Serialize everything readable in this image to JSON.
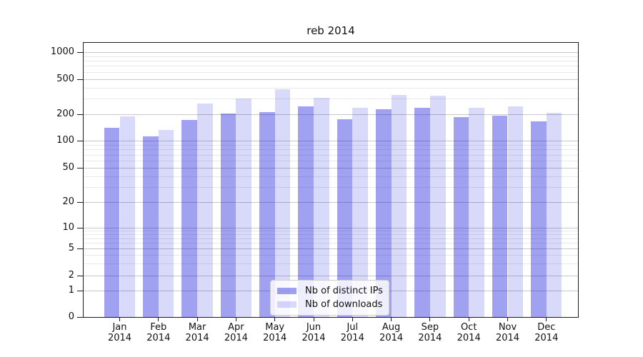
{
  "title": "reb 2014",
  "colors": {
    "bar_ips": "rgba(0,0,220,0.37)",
    "bar_downloads": "rgba(0,0,220,0.15)",
    "grid_major": "#c7c7c7",
    "grid_minor": "#e9e9e9",
    "frame": "#1a1a1a"
  },
  "chart_data": {
    "type": "bar",
    "title": "reb 2014",
    "categories": [
      "Jan 2014",
      "Feb 2014",
      "Mar 2014",
      "Apr 2014",
      "May 2014",
      "Jun 2014",
      "Jul 2014",
      "Aug 2014",
      "Sep 2014",
      "Oct 2014",
      "Nov 2014",
      "Dec 2014"
    ],
    "series": [
      {
        "name": "Nb of distinct IPs",
        "values": [
          140,
          113,
          172,
          202,
          212,
          245,
          176,
          227,
          238,
          187,
          193,
          165
        ]
      },
      {
        "name": "Nb of downloads",
        "values": [
          190,
          132,
          265,
          300,
          380,
          305,
          237,
          332,
          326,
          237,
          247,
          207
        ]
      }
    ],
    "yscale": "symlog",
    "yticks": [
      0,
      1,
      2,
      5,
      10,
      20,
      50,
      100,
      200,
      500,
      1000
    ],
    "minor_grid_values": [
      3,
      4,
      6,
      7,
      8,
      9,
      30,
      40,
      60,
      70,
      80,
      90,
      300,
      400,
      600,
      700,
      800,
      900
    ],
    "ylim": [
      0,
      1300
    ],
    "xlabel": "",
    "ylabel": "",
    "grid": true,
    "legend_position": "lower center"
  }
}
